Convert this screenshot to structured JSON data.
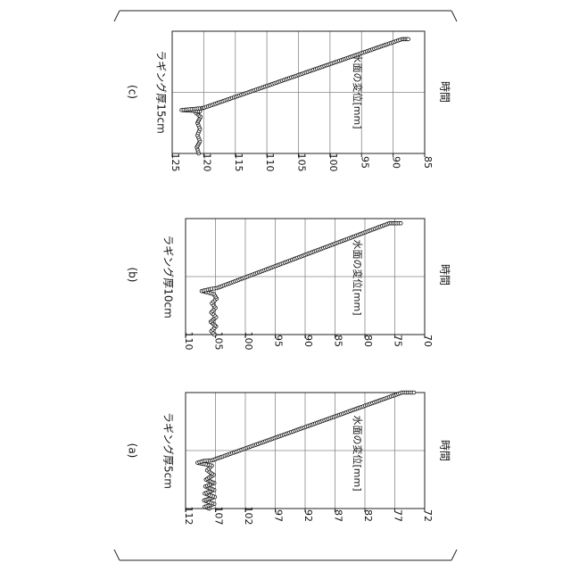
{
  "page_marks": [
    "(a)",
    "(b)",
    "(c)"
  ],
  "chart_data": [
    {
      "id": "a",
      "type": "scatter",
      "panel_label": "(a)",
      "title": "ラギング厚5cm",
      "ylabel": "水面の変位[mm]",
      "xlabel": "時間",
      "y_ticks": [
        "112",
        "107",
        "102",
        "97",
        "92",
        "87",
        "82",
        "77",
        "72"
      ],
      "ylim": [
        72,
        112
      ],
      "grid": true,
      "series": [
        {
          "style": "open-circle",
          "trace": [
            [
              0.0,
              108.0
            ],
            [
              0.015,
              108.8
            ],
            [
              0.04,
              107.2
            ],
            [
              0.07,
              108.9
            ],
            [
              0.1,
              107.1
            ],
            [
              0.13,
              108.8
            ],
            [
              0.16,
              107.2
            ],
            [
              0.19,
              108.7
            ],
            [
              0.22,
              107.2
            ],
            [
              0.25,
              108.6
            ],
            [
              0.29,
              107.3
            ],
            [
              0.33,
              108.4
            ],
            [
              0.37,
              107.6
            ],
            [
              0.395,
              110.0
            ],
            [
              0.41,
              109.0
            ],
            [
              0.415,
              107.6
            ],
            [
              1.0,
              75.8
            ],
            [
              1.0,
              74.5
            ],
            [
              1.0,
              73.8
            ]
          ]
        }
      ]
    },
    {
      "id": "b",
      "type": "scatter",
      "panel_label": "(b)",
      "title": "ラギング厚10cm",
      "ylabel": "水面の変位[mm]",
      "xlabel": "時間",
      "y_ticks": [
        "110",
        "105",
        "100",
        "95",
        "90",
        "85",
        "80",
        "75",
        "70"
      ],
      "ylim": [
        70,
        110
      ],
      "grid": true,
      "series": [
        {
          "style": "open-circle",
          "trace": [
            [
              0.0,
              105.2
            ],
            [
              0.03,
              105.7
            ],
            [
              0.07,
              104.9
            ],
            [
              0.11,
              105.8
            ],
            [
              0.15,
              104.9
            ],
            [
              0.19,
              105.7
            ],
            [
              0.23,
              105.0
            ],
            [
              0.27,
              105.6
            ],
            [
              0.31,
              104.8
            ],
            [
              0.35,
              105.3
            ],
            [
              0.375,
              107.3
            ],
            [
              0.395,
              105.6
            ],
            [
              0.4,
              104.8
            ],
            [
              0.96,
              75.9
            ],
            [
              0.96,
              74.7
            ],
            [
              0.96,
              74.0
            ]
          ]
        }
      ]
    },
    {
      "id": "c",
      "type": "scatter",
      "panel_label": "(c)",
      "title": "ラギング厚15cm",
      "ylabel": "水面の変位[mm]",
      "xlabel": "時間",
      "y_ticks": [
        "125",
        "120",
        "115",
        "110",
        "105",
        "100",
        "95",
        "90",
        "85"
      ],
      "ylim": [
        85,
        125
      ],
      "grid": true,
      "series": [
        {
          "style": "open-circle",
          "trace": [
            [
              0.0,
              120.8
            ],
            [
              0.05,
              121.1
            ],
            [
              0.1,
              120.6
            ],
            [
              0.15,
              121.0
            ],
            [
              0.2,
              120.6
            ],
            [
              0.25,
              121.0
            ],
            [
              0.3,
              120.5
            ],
            [
              0.33,
              121.2
            ],
            [
              0.345,
              120.6
            ],
            [
              0.355,
              123.5
            ],
            [
              0.37,
              120.3
            ],
            [
              0.375,
              119.9
            ],
            [
              0.935,
              88.6
            ],
            [
              0.935,
              88.1
            ],
            [
              0.935,
              87.6
            ]
          ]
        }
      ]
    }
  ]
}
